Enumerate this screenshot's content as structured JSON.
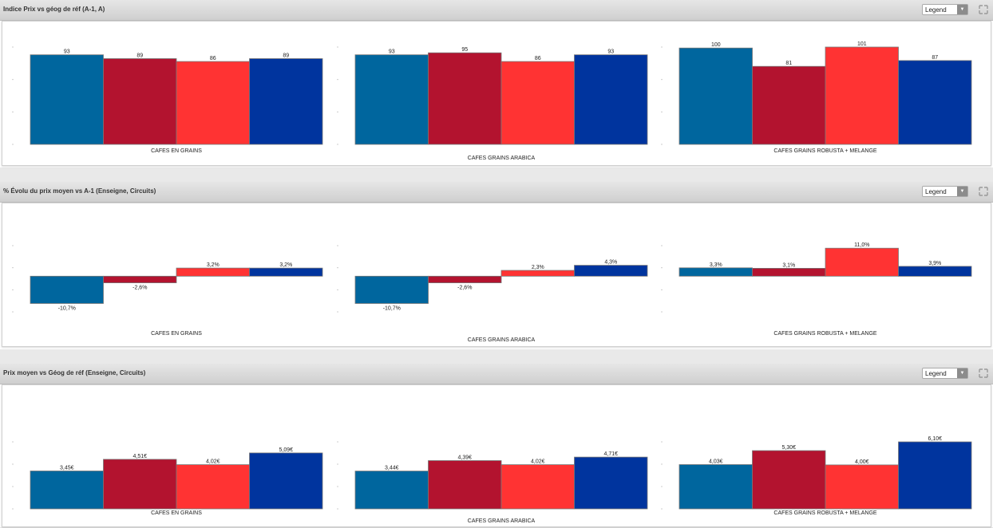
{
  "panels": [
    {
      "title": "Indice Prix vs géog de réf (A-1, A)",
      "legend_label": "Legend"
    },
    {
      "title": "% Évolu du prix moyen vs A-1 (Enseigne, Circuits)",
      "legend_label": "Legend"
    },
    {
      "title": "Prix moyen vs Géog de réf (Enseigne, Circuits)",
      "legend_label": "Legend"
    }
  ],
  "colors": [
    "#00669e",
    "#b3132f",
    "#ff3333",
    "#00349e"
  ],
  "chart_data": [
    {
      "type": "bar",
      "categories": [
        "CAFES EN GRAINS",
        "CAFES GRAINS ARABICA",
        "CAFES GRAINS ROBUSTA + MELANGE"
      ],
      "series": [
        {
          "values": [
            93,
            93,
            100
          ],
          "labels": [
            "93",
            "93",
            "100"
          ]
        },
        {
          "values": [
            89,
            95,
            81
          ],
          "labels": [
            "89",
            "95",
            "81"
          ]
        },
        {
          "values": [
            86,
            86,
            101
          ],
          "labels": [
            "86",
            "86",
            "101"
          ]
        },
        {
          "values": [
            89,
            93,
            87
          ],
          "labels": [
            "89",
            "93",
            "87"
          ]
        }
      ],
      "ylim": [
        0,
        101
      ]
    },
    {
      "type": "bar",
      "categories": [
        "CAFES EN GRAINS",
        "CAFES GRAINS ARABICA",
        "CAFES GRAINS ROBUSTA + MELANGE"
      ],
      "series": [
        {
          "values": [
            -10.7,
            -10.7,
            3.3
          ],
          "labels": [
            "-10,7%",
            "-10,7%",
            "3,3%"
          ]
        },
        {
          "values": [
            -2.6,
            -2.6,
            3.1
          ],
          "labels": [
            "-2,6%",
            "-2,6%",
            "3,1%"
          ]
        },
        {
          "values": [
            3.2,
            2.3,
            11.0
          ],
          "labels": [
            "3,2%",
            "2,3%",
            "11,0%"
          ]
        },
        {
          "values": [
            3.2,
            4.3,
            3.9
          ],
          "labels": [
            "3,2%",
            "4,3%",
            "3,9%"
          ]
        }
      ],
      "ylim": [
        -14,
        12
      ]
    },
    {
      "type": "bar",
      "categories": [
        "CAFES EN GRAINS",
        "CAFES GRAINS ARABICA",
        "CAFES GRAINS ROBUSTA + MELANGE"
      ],
      "series": [
        {
          "values": [
            3.45,
            3.44,
            4.03
          ],
          "labels": [
            "3,45€",
            "3,44€",
            "4,03€"
          ]
        },
        {
          "values": [
            4.51,
            4.39,
            5.3
          ],
          "labels": [
            "4,51€",
            "4,39€",
            "5,30€"
          ]
        },
        {
          "values": [
            4.02,
            4.02,
            4.0
          ],
          "labels": [
            "4,02€",
            "4,02€",
            "4,00€"
          ]
        },
        {
          "values": [
            5.09,
            4.71,
            6.1
          ],
          "labels": [
            "5,09€",
            "4,71€",
            "6,10€"
          ]
        }
      ],
      "ylim": [
        0,
        6.1
      ]
    }
  ]
}
